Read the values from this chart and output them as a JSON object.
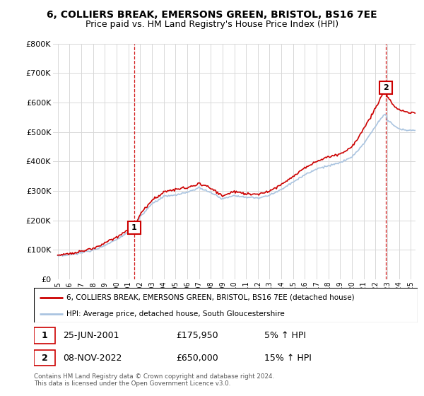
{
  "title": "6, COLLIERS BREAK, EMERSONS GREEN, BRISTOL, BS16 7EE",
  "subtitle": "Price paid vs. HM Land Registry's House Price Index (HPI)",
  "ylim": [
    0,
    800000
  ],
  "yticks": [
    0,
    100000,
    200000,
    300000,
    400000,
    500000,
    600000,
    700000,
    800000
  ],
  "ytick_labels": [
    "£0",
    "£100K",
    "£200K",
    "£300K",
    "£400K",
    "£500K",
    "£600K",
    "£700K",
    "£800K"
  ],
  "background_color": "#ffffff",
  "grid_color": "#d8d8d8",
  "hpi_color": "#aac4e0",
  "price_color": "#cc0000",
  "marker1_date": 2001.48,
  "marker1_price": 175950,
  "marker1_label": "1",
  "marker2_date": 2022.85,
  "marker2_price": 650000,
  "marker2_label": "2",
  "legend_label1": "6, COLLIERS BREAK, EMERSONS GREEN, BRISTOL, BS16 7EE (detached house)",
  "legend_label2": "HPI: Average price, detached house, South Gloucestershire",
  "annotation1_date": "25-JUN-2001",
  "annotation1_price": "£175,950",
  "annotation1_hpi": "5% ↑ HPI",
  "annotation2_date": "08-NOV-2022",
  "annotation2_price": "£650,000",
  "annotation2_hpi": "15% ↑ HPI",
  "footer": "Contains HM Land Registry data © Crown copyright and database right 2024.\nThis data is licensed under the Open Government Licence v3.0.",
  "title_fontsize": 10,
  "subtitle_fontsize": 9
}
